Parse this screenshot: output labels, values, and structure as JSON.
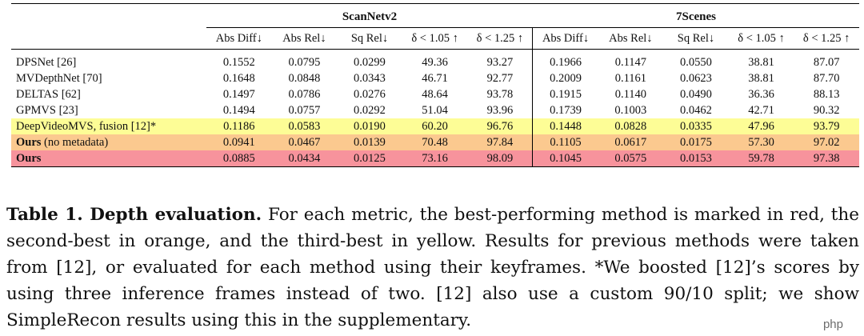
{
  "table": {
    "groups": {
      "scannet": "ScanNetv2",
      "sevenscenes": "7Scenes"
    },
    "metrics": [
      "Abs Diff↓",
      "Abs Rel↓",
      "Sq Rel↓",
      "δ < 1.05 ↑",
      "δ < 1.25 ↑"
    ],
    "row_colors": {
      "third": "#fdfd96",
      "second": "#fbc98f",
      "best": "#f7939c"
    },
    "rows": [
      {
        "method": "DPSNet  [26]",
        "bold": false,
        "suffix": "",
        "highlight": "none",
        "scannet": [
          "0.1552",
          "0.0795",
          "0.0299",
          "49.36",
          "93.27"
        ],
        "sevenscenes": [
          "0.1966",
          "0.1147",
          "0.0550",
          "38.81",
          "87.07"
        ]
      },
      {
        "method": "MVDepthNet  [70]",
        "bold": false,
        "suffix": "",
        "highlight": "none",
        "scannet": [
          "0.1648",
          "0.0848",
          "0.0343",
          "46.71",
          "92.77"
        ],
        "sevenscenes": [
          "0.2009",
          "0.1161",
          "0.0623",
          "38.81",
          "87.70"
        ]
      },
      {
        "method": "DELTAS  [62]",
        "bold": false,
        "suffix": "",
        "highlight": "none",
        "scannet": [
          "0.1497",
          "0.0786",
          "0.0276",
          "48.64",
          "93.78"
        ],
        "sevenscenes": [
          "0.1915",
          "0.1140",
          "0.0490",
          "36.36",
          "88.13"
        ]
      },
      {
        "method": "GPMVS  [23]",
        "bold": false,
        "suffix": "",
        "highlight": "none",
        "scannet": [
          "0.1494",
          "0.0757",
          "0.0292",
          "51.04",
          "93.96"
        ],
        "sevenscenes": [
          "0.1739",
          "0.1003",
          "0.0462",
          "42.71",
          "90.32"
        ]
      },
      {
        "method": "DeepVideoMVS, fusion [12]*",
        "bold": false,
        "suffix": "",
        "highlight": "third",
        "scannet": [
          "0.1186",
          "0.0583",
          "0.0190",
          "60.20",
          "96.76"
        ],
        "sevenscenes": [
          "0.1448",
          "0.0828",
          "0.0335",
          "47.96",
          "93.79"
        ]
      },
      {
        "method": "Ours",
        "bold": true,
        "suffix": " (no metadata)",
        "highlight": "second",
        "scannet": [
          "0.0941",
          "0.0467",
          "0.0139",
          "70.48",
          "97.84"
        ],
        "sevenscenes": [
          "0.1105",
          "0.0617",
          "0.0175",
          "57.30",
          "97.02"
        ]
      },
      {
        "method": "Ours",
        "bold": true,
        "suffix": "",
        "highlight": "best",
        "scannet": [
          "0.0885",
          "0.0434",
          "0.0125",
          "73.16",
          "98.09"
        ],
        "sevenscenes": [
          "0.1045",
          "0.0575",
          "0.0153",
          "59.78",
          "97.38"
        ]
      }
    ]
  },
  "caption": {
    "title": "Table 1. Depth evaluation.",
    "body": " For each metric, the best-performing method is marked in red, the second-best in orange, and the third-best in yellow. Results for previous methods were taken from [12], or evaluated for each method using their keyframes. *We boosted [12]’s scores by using three inference frames instead of two. [12] also use a custom 90/10 split; we show SimpleRecon results using this in the supplementary."
  },
  "watermark": "php"
}
